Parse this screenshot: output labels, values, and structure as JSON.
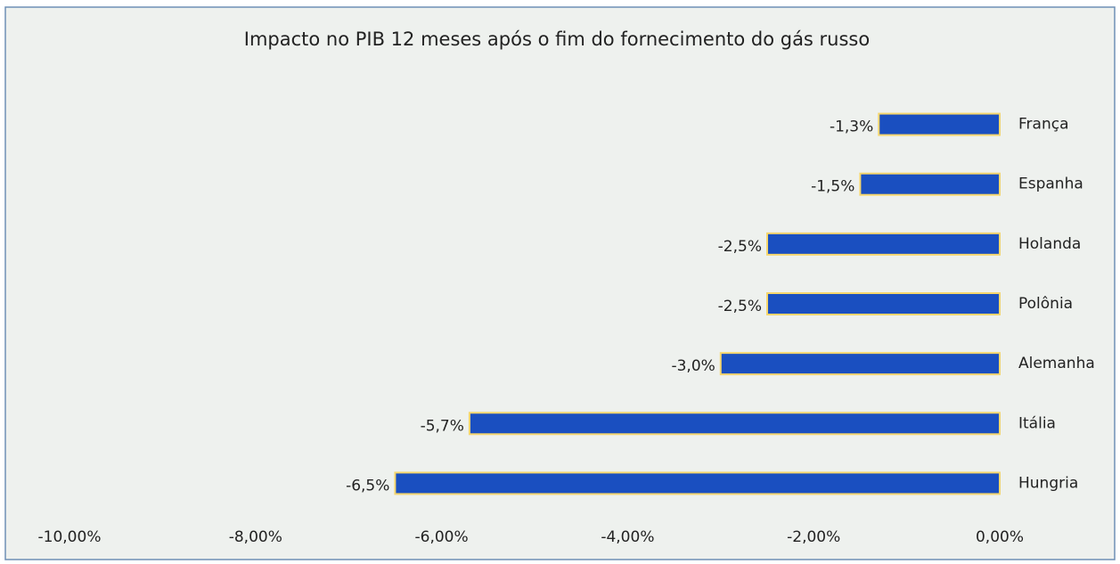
{
  "chart_data": {
    "type": "hbar",
    "title": "Impacto no PIB 12 meses após o fim do fornecimento do gás russo",
    "categories": [
      "França",
      "Espanha",
      "Holanda",
      "Polônia",
      "Alemanha",
      "Itália",
      "Hungria"
    ],
    "values": [
      -1.3,
      -1.5,
      -2.5,
      -2.5,
      -3.0,
      -5.7,
      -6.5
    ],
    "value_labels": [
      "-1,3%",
      "-1,5%",
      "-2,5%",
      "-2,5%",
      "-3,0%",
      "-5,7%",
      "-6,5%"
    ],
    "color": "#1a4fc0",
    "xlim": [
      -10,
      0
    ],
    "xticks": [
      {
        "value": -10,
        "label": "-10,00%"
      },
      {
        "value": -8,
        "label": "-8,00%"
      },
      {
        "value": -6,
        "label": "-6,00%"
      },
      {
        "value": -4,
        "label": "-4,00%"
      },
      {
        "value": -2,
        "label": "-2,00%"
      },
      {
        "value": 0,
        "label": "0,00%"
      }
    ],
    "grid": false
  }
}
